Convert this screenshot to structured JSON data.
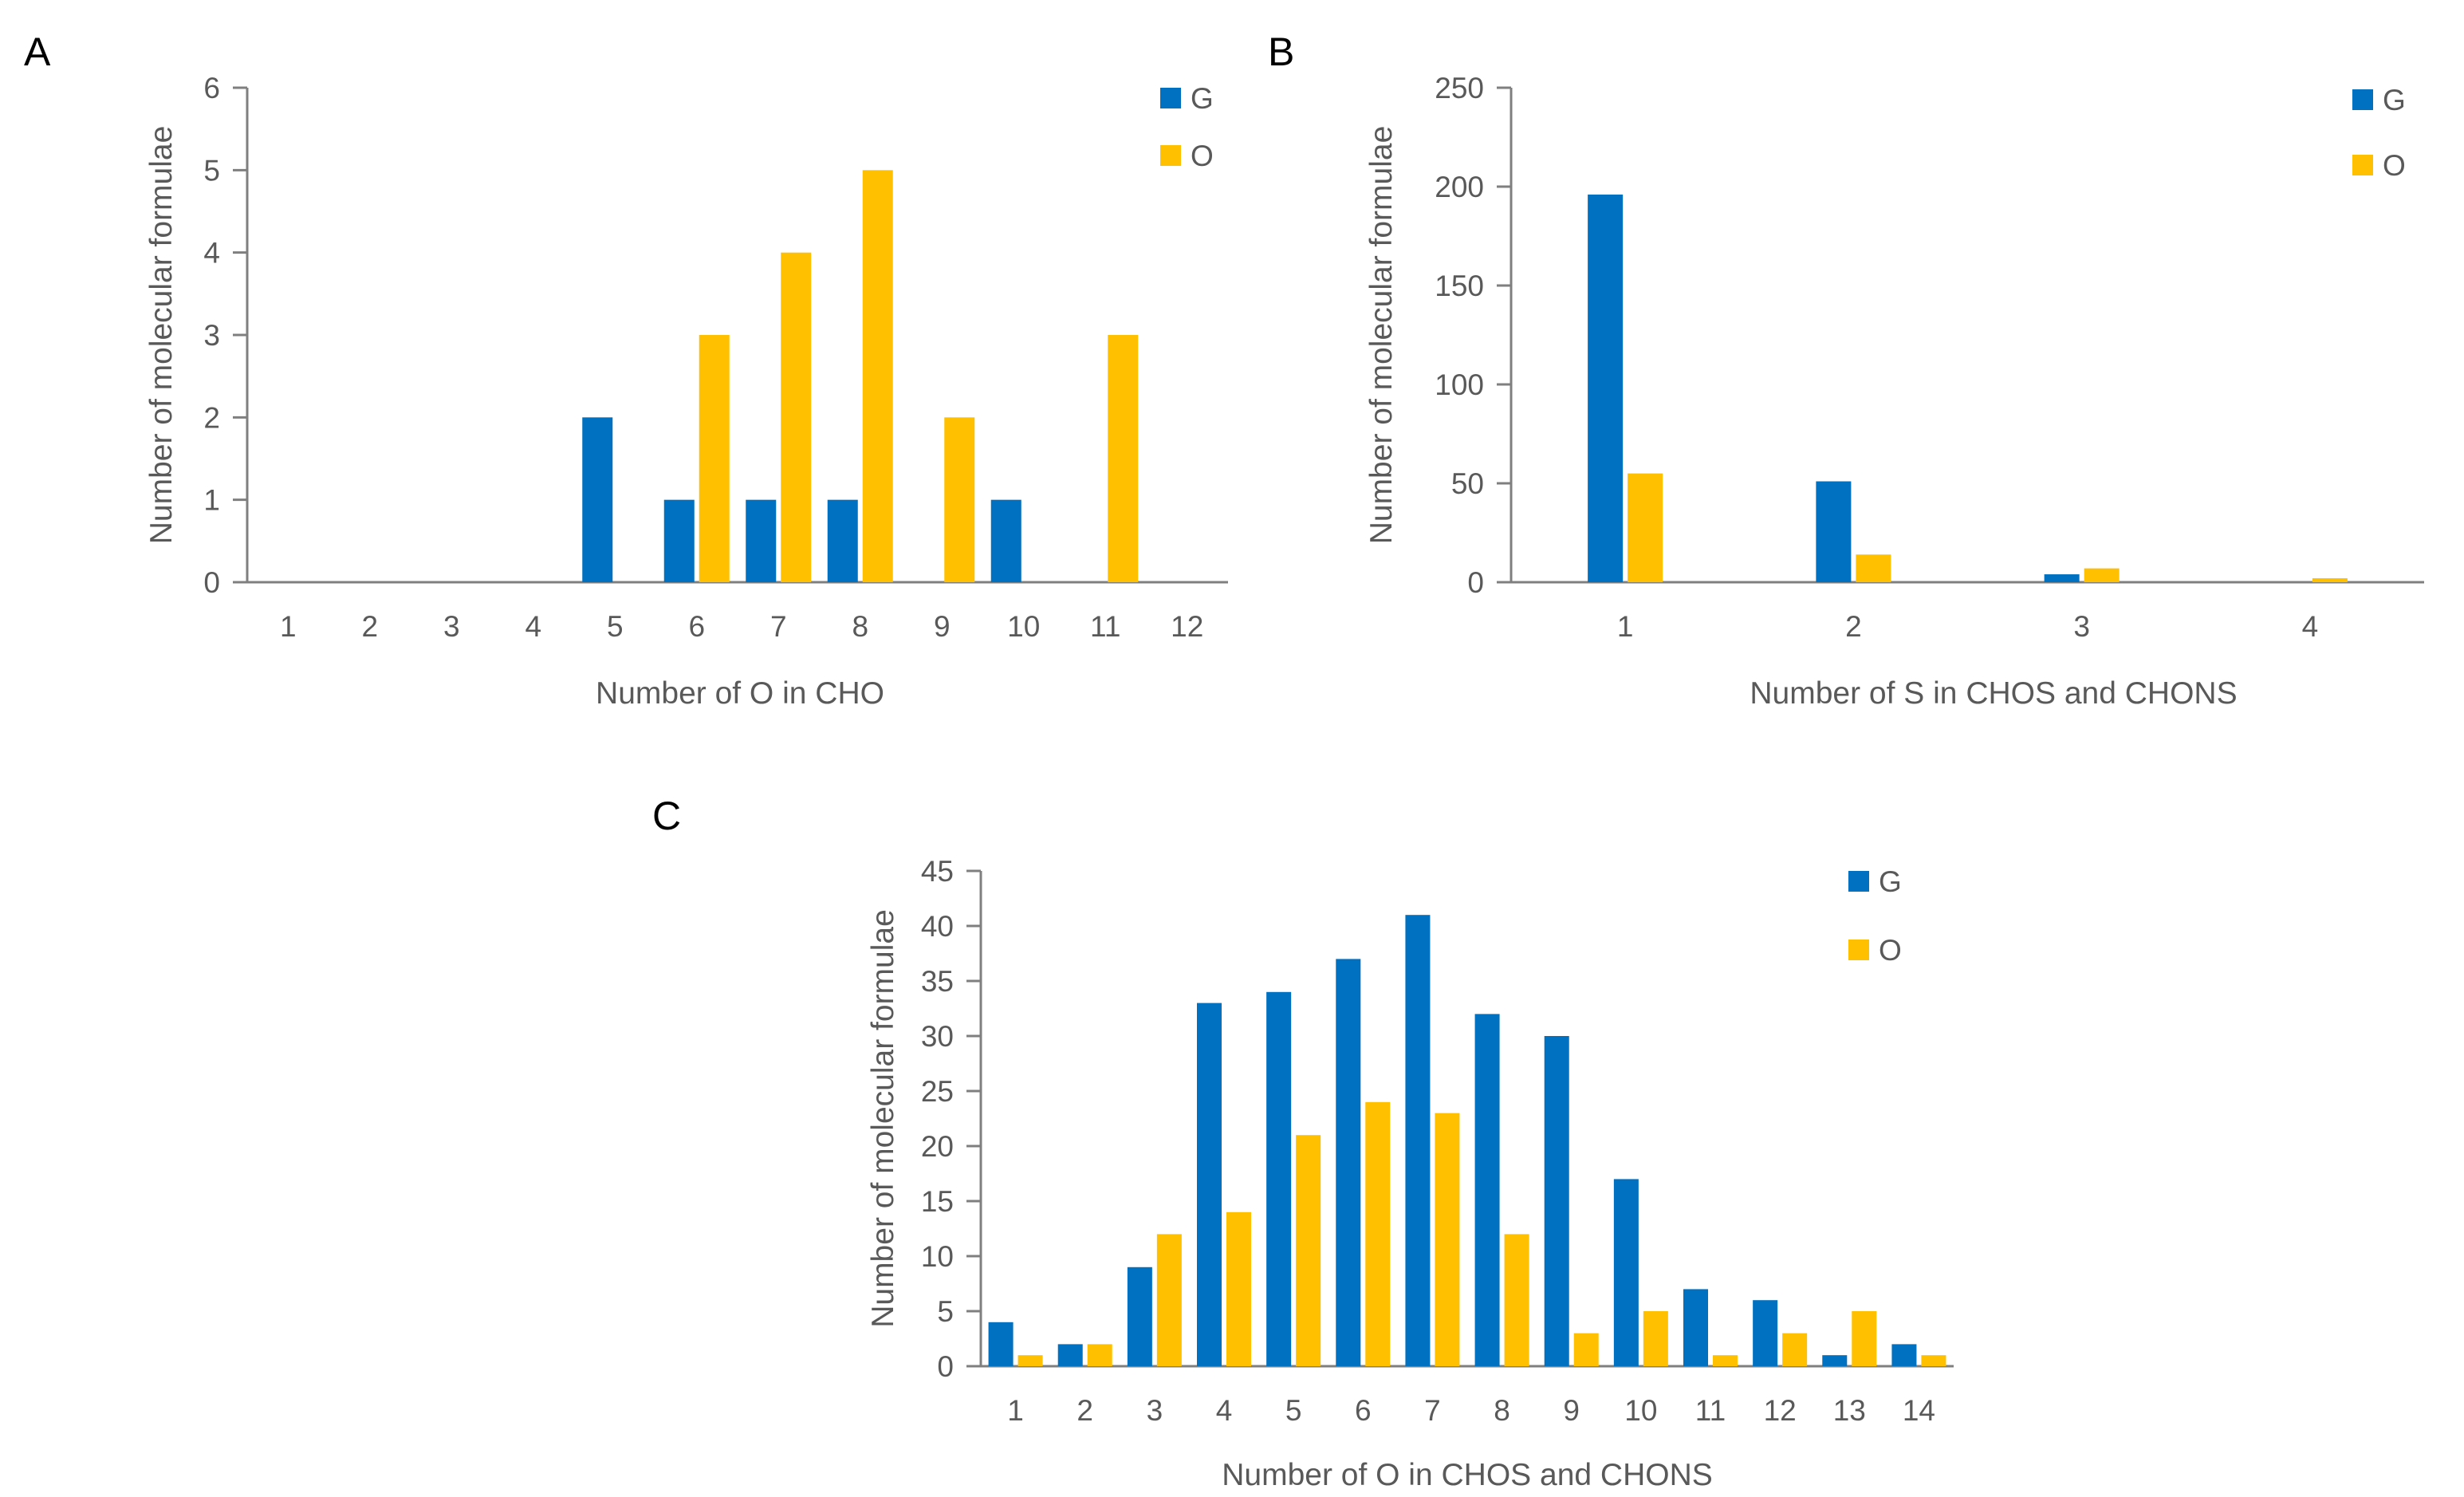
{
  "series_colors": {
    "G": "#0070C0",
    "O": "#FFC000"
  },
  "chart_data": [
    {
      "panel": "A",
      "type": "bar",
      "xlabel": "Number of O in CHO",
      "ylabel": "Number of molecular formulae",
      "ylim": [
        0,
        6
      ],
      "yticks": [
        0,
        1,
        2,
        3,
        4,
        5,
        6
      ],
      "categories": [
        "1",
        "2",
        "3",
        "4",
        "5",
        "6",
        "7",
        "8",
        "9",
        "10",
        "11",
        "12"
      ],
      "series": [
        {
          "name": "G",
          "values": [
            0,
            0,
            0,
            0,
            2,
            1,
            1,
            1,
            0,
            1,
            0,
            0
          ]
        },
        {
          "name": "O",
          "values": [
            0,
            0,
            0,
            0,
            0,
            3,
            4,
            5,
            2,
            0,
            3,
            0
          ]
        }
      ],
      "legend": "top-right"
    },
    {
      "panel": "B",
      "type": "bar",
      "xlabel": "Number of S in CHOS and CHONS",
      "ylabel": "Number of molecular formulae",
      "ylim": [
        0,
        250
      ],
      "yticks": [
        0,
        50,
        100,
        150,
        200,
        250
      ],
      "categories": [
        "1",
        "2",
        "3",
        "4"
      ],
      "series": [
        {
          "name": "G",
          "values": [
            196,
            51,
            4,
            0
          ]
        },
        {
          "name": "O",
          "values": [
            55,
            14,
            7,
            2
          ]
        }
      ],
      "legend": "top-right"
    },
    {
      "panel": "C",
      "type": "bar",
      "xlabel": "Number of O in CHOS and CHONS",
      "ylabel": "Number of molecular formulae",
      "ylim": [
        0,
        45
      ],
      "yticks": [
        0,
        5,
        10,
        15,
        20,
        25,
        30,
        35,
        40,
        45
      ],
      "categories": [
        "1",
        "2",
        "3",
        "4",
        "5",
        "6",
        "7",
        "8",
        "9",
        "10",
        "11",
        "12",
        "13",
        "14"
      ],
      "series": [
        {
          "name": "G",
          "values": [
            4,
            2,
            9,
            33,
            34,
            37,
            41,
            32,
            30,
            17,
            7,
            6,
            1,
            2
          ]
        },
        {
          "name": "O",
          "values": [
            1,
            2,
            12,
            14,
            21,
            24,
            23,
            12,
            3,
            5,
            1,
            3,
            5,
            1
          ]
        }
      ],
      "legend": "top-right"
    }
  ]
}
